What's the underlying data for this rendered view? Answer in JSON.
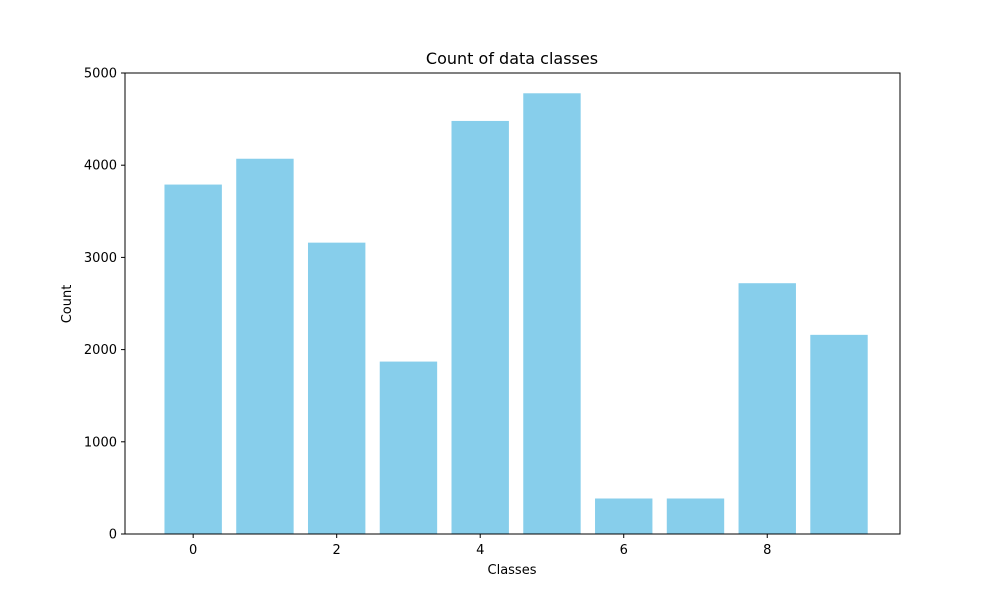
{
  "chart_data": {
    "type": "bar",
    "title": "Count of data classes",
    "xlabel": "Classes",
    "ylabel": "Count",
    "categories": [
      0,
      1,
      2,
      3,
      4,
      5,
      6,
      7,
      8,
      9
    ],
    "values": [
      3790,
      4070,
      3160,
      1870,
      4480,
      4780,
      385,
      385,
      2720,
      2160
    ],
    "bar_color": "#87ceeb",
    "xlim": [
      -0.95,
      9.85
    ],
    "ylim": [
      0,
      5000
    ],
    "xticks": [
      0,
      2,
      4,
      6,
      8
    ],
    "yticks": [
      0,
      1000,
      2000,
      3000,
      4000,
      5000
    ],
    "grid": false,
    "legend": "none"
  }
}
